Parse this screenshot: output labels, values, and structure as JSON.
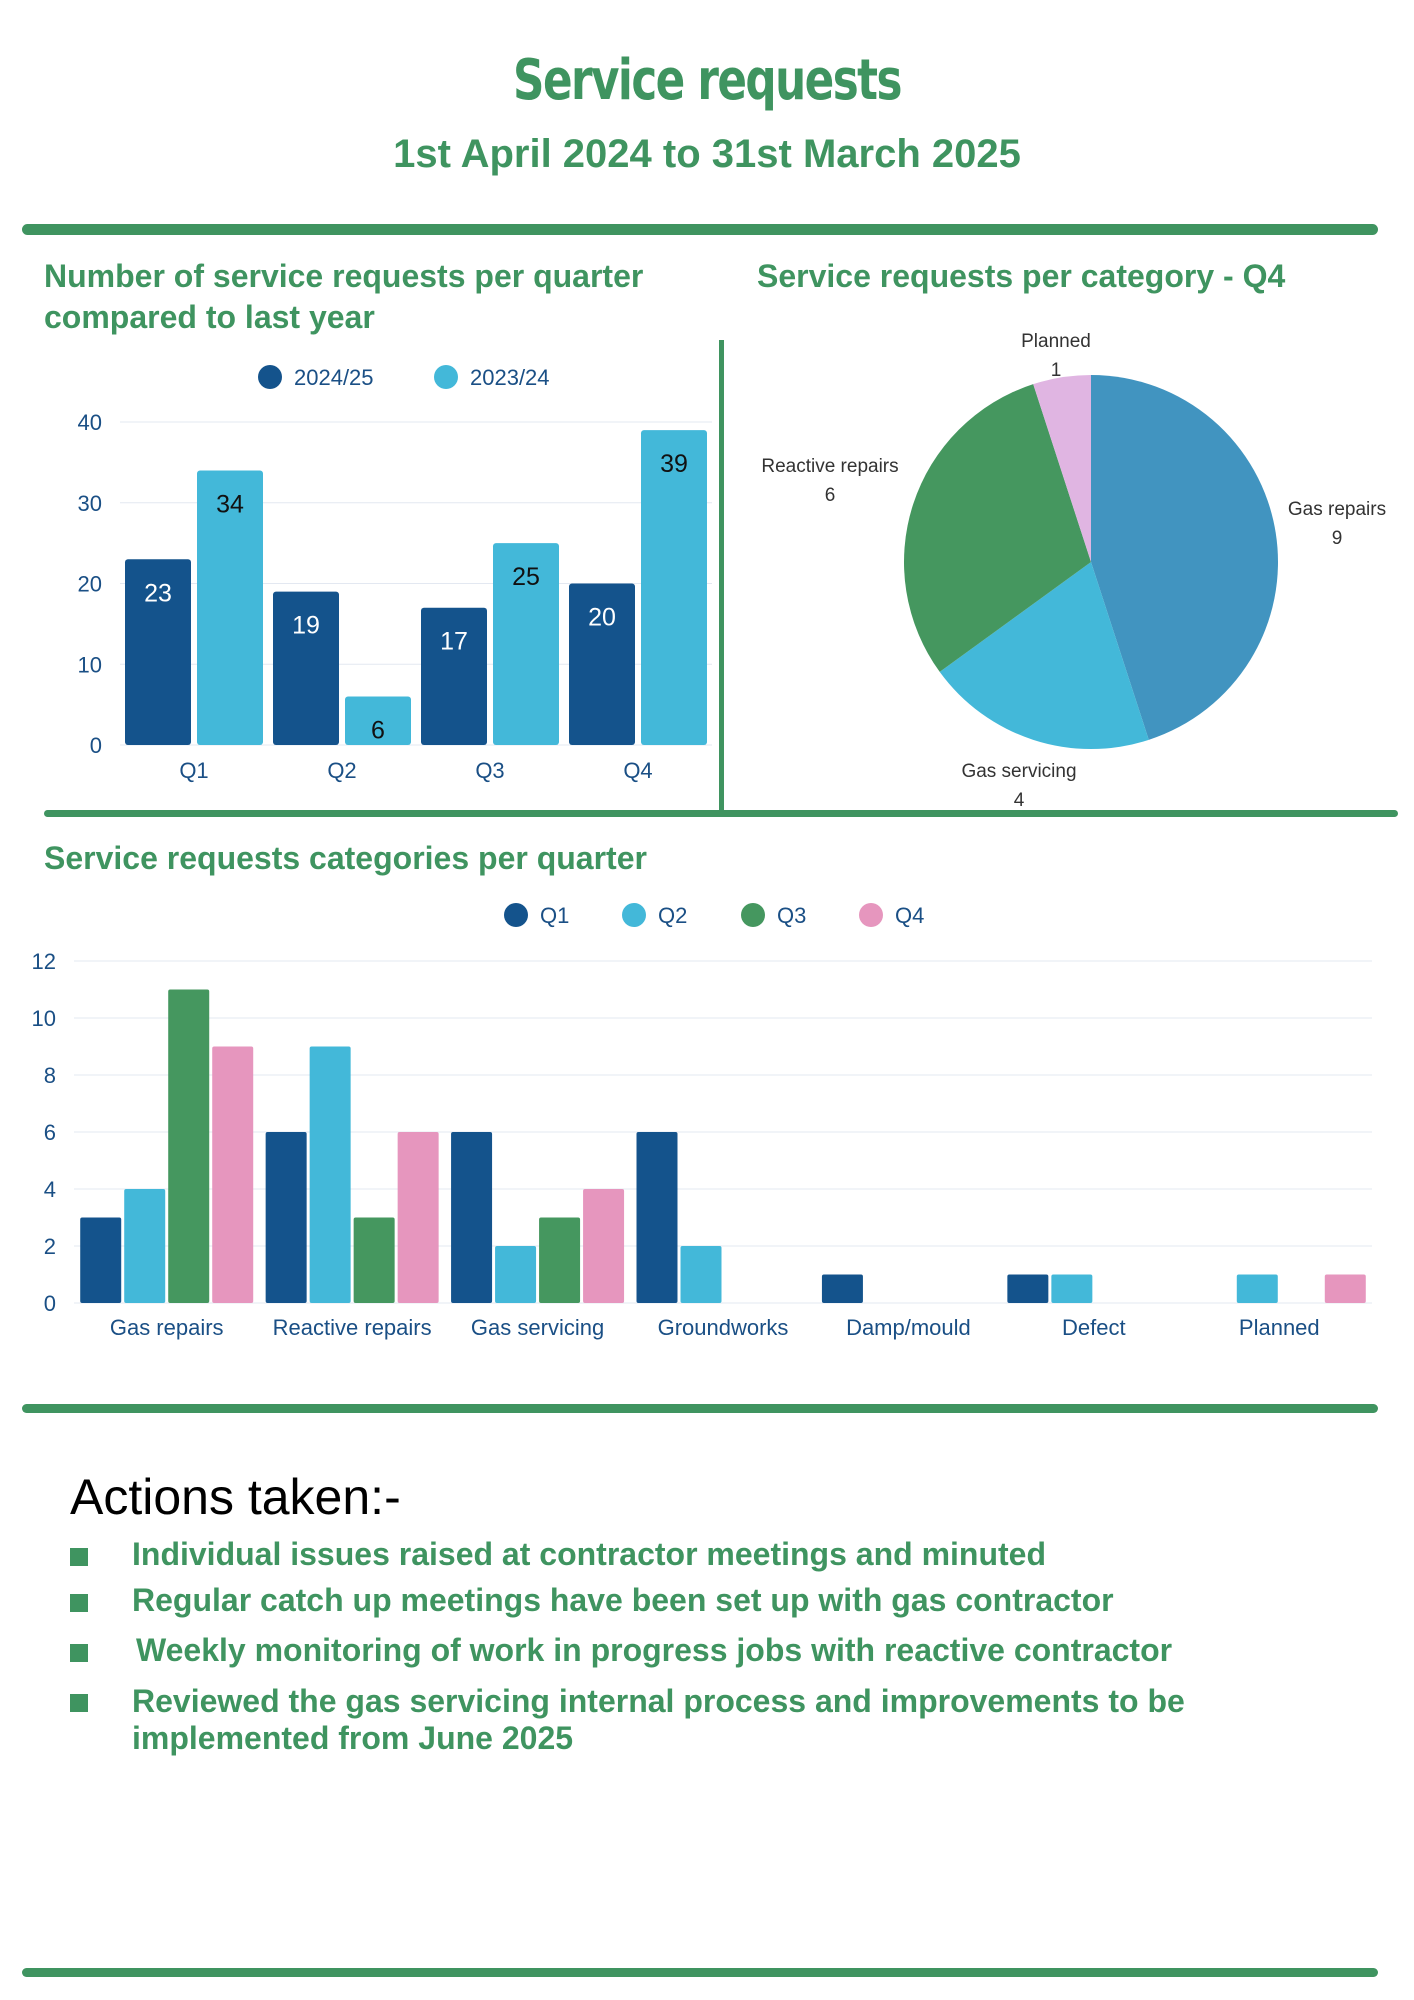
{
  "header": {
    "title": "Service requests",
    "subtitle": "1st April 2024 to 31st March 2025"
  },
  "colors": {
    "green": "#3f9460",
    "dark_blue": "#14538c",
    "light_blue": "#43b8d9",
    "pie_gas_repairs": "#4194c0",
    "pink": "#e696be",
    "lilac": "#e0b5e2",
    "axis_text": "#1a4f85"
  },
  "sections": {
    "per_quarter_title": "Number of service requests per quarter compared to last year",
    "per_category_title": "Service requests per category - Q4",
    "categories_title": "Service requests categories per quarter"
  },
  "chart_data": [
    {
      "type": "bar",
      "categories": [
        "Q1",
        "Q2",
        "Q3",
        "Q4"
      ],
      "series": [
        {
          "name": "2024/25",
          "values": [
            23,
            19,
            17,
            20
          ],
          "color": "#14538c"
        },
        {
          "name": "2023/24",
          "values": [
            34,
            6,
            25,
            39
          ],
          "color": "#43b8d9"
        }
      ],
      "yticks": [
        0,
        10,
        20,
        30,
        40
      ],
      "ylim": [
        0,
        40
      ],
      "legend": "top",
      "grid": true
    },
    {
      "type": "pie",
      "labels": [
        "Gas repairs",
        "Gas servicing",
        "Reactive repairs",
        "Planned"
      ],
      "values": [
        9,
        4,
        6,
        1
      ],
      "colors": [
        "#4194c0",
        "#43b8d9",
        "#45975f",
        "#e0b5e2"
      ]
    },
    {
      "type": "bar",
      "categories": [
        "Gas repairs",
        "Reactive repairs",
        "Gas servicing",
        "Groundworks",
        "Damp/mould",
        "Defect",
        "Planned"
      ],
      "series": [
        {
          "name": "Q1",
          "values": [
            3,
            6,
            6,
            6,
            1,
            1,
            0
          ],
          "color": "#14538c"
        },
        {
          "name": "Q2",
          "values": [
            4,
            9,
            2,
            2,
            0,
            1,
            1
          ],
          "color": "#43b8d9"
        },
        {
          "name": "Q3",
          "values": [
            11,
            3,
            3,
            0,
            0,
            0,
            0
          ],
          "color": "#45975f"
        },
        {
          "name": "Q4",
          "values": [
            9,
            6,
            4,
            0,
            0,
            0,
            1
          ],
          "color": "#e696be"
        }
      ],
      "yticks": [
        0,
        2,
        4,
        6,
        8,
        10,
        12
      ],
      "ylim": [
        0,
        12
      ],
      "legend": "top",
      "grid": true
    }
  ],
  "actions": {
    "heading": "Actions taken:-",
    "items": [
      "Individual issues raised at contractor meetings and minuted",
      "Regular catch up meetings have been set up with gas contractor",
      "Weekly monitoring of work in progress jobs with reactive contractor",
      "Reviewed the gas servicing internal process and improvements to be implemented from June 2025"
    ]
  }
}
